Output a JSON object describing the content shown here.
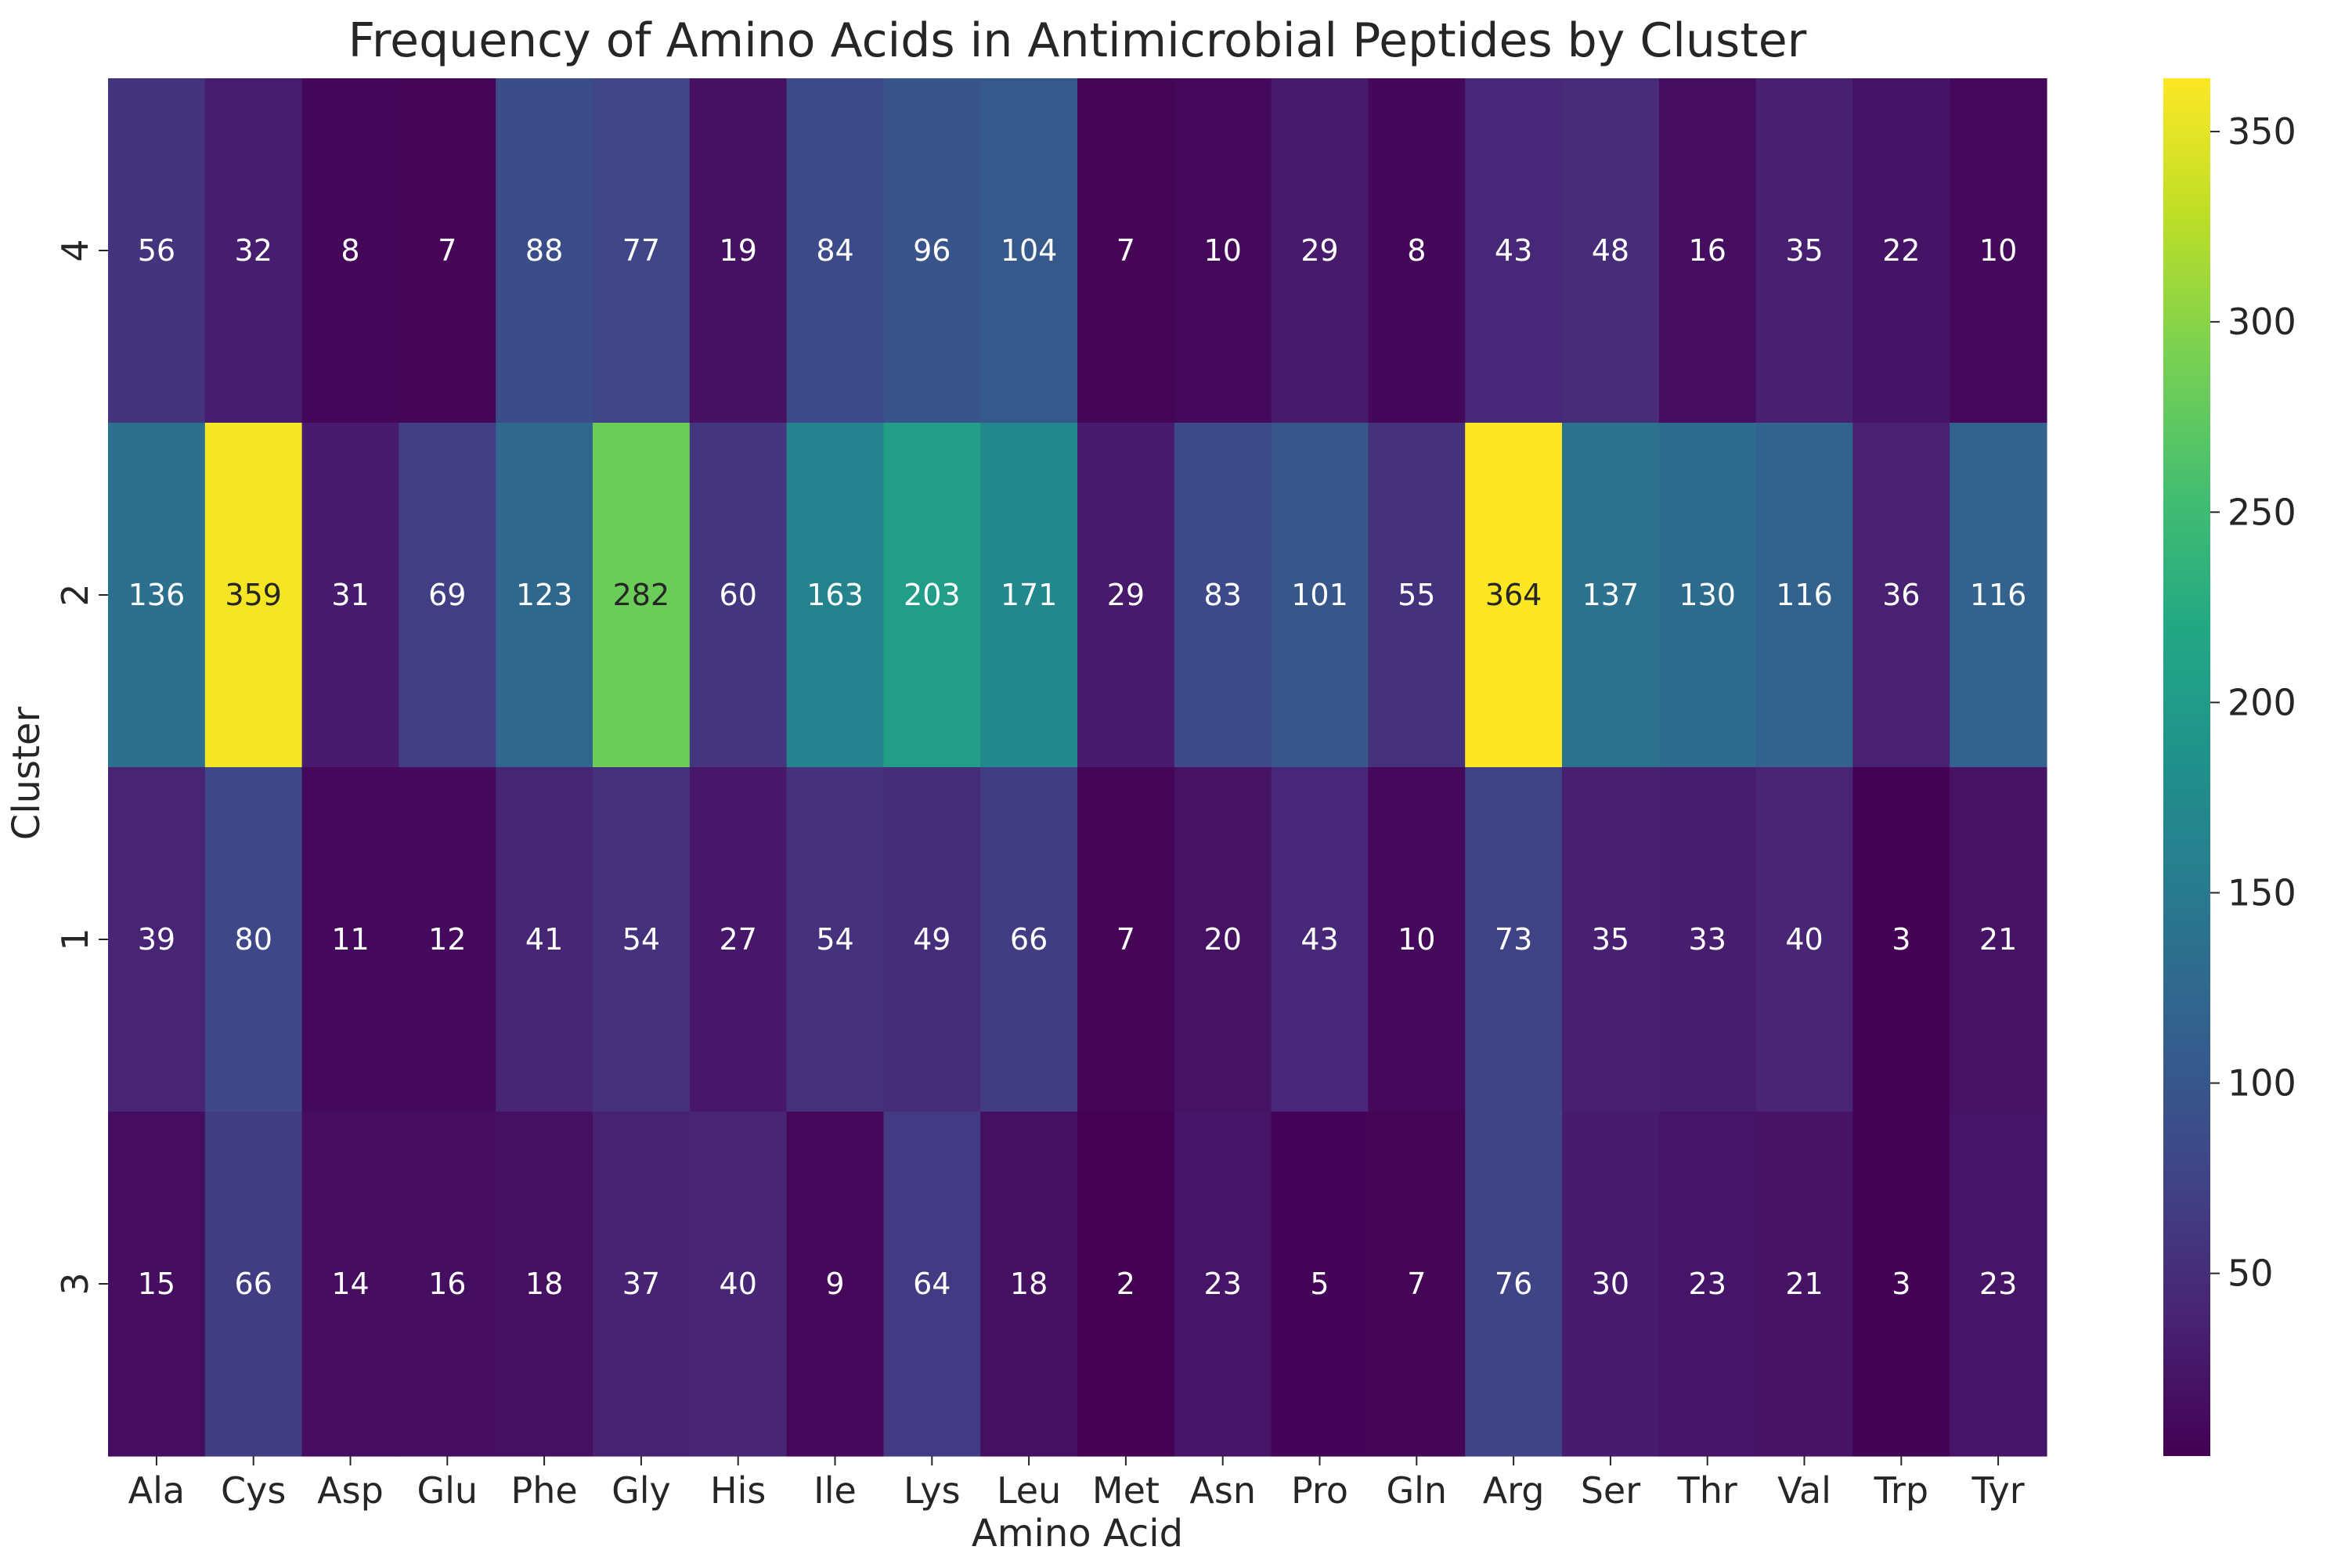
{
  "chart_data": {
    "type": "heatmap",
    "title": "Frequency of Amino Acids in Antimicrobial Peptides by Cluster",
    "xlabel": "Amino Acid",
    "ylabel": "Cluster",
    "x_categories": [
      "Ala",
      "Cys",
      "Asp",
      "Glu",
      "Phe",
      "Gly",
      "His",
      "Ile",
      "Lys",
      "Leu",
      "Met",
      "Asn",
      "Pro",
      "Gln",
      "Arg",
      "Ser",
      "Thr",
      "Val",
      "Trp",
      "Tyr"
    ],
    "y_categories": [
      "4",
      "2",
      "1",
      "3"
    ],
    "values": [
      [
        56,
        32,
        8,
        7,
        88,
        77,
        19,
        84,
        96,
        104,
        7,
        10,
        29,
        8,
        43,
        48,
        16,
        35,
        22,
        10
      ],
      [
        136,
        359,
        31,
        69,
        123,
        282,
        60,
        163,
        203,
        171,
        29,
        83,
        101,
        55,
        364,
        137,
        130,
        116,
        36,
        116
      ],
      [
        39,
        80,
        11,
        12,
        41,
        54,
        27,
        54,
        49,
        66,
        7,
        20,
        43,
        10,
        73,
        35,
        33,
        40,
        3,
        21
      ],
      [
        15,
        66,
        14,
        16,
        18,
        37,
        40,
        9,
        64,
        18,
        2,
        23,
        5,
        7,
        76,
        30,
        23,
        21,
        3,
        23
      ]
    ],
    "colormap": "viridis",
    "color_range": [
      2,
      364
    ],
    "colorbar_ticks": [
      50,
      100,
      150,
      200,
      250,
      300,
      350
    ],
    "annotations": true,
    "grid": false
  }
}
